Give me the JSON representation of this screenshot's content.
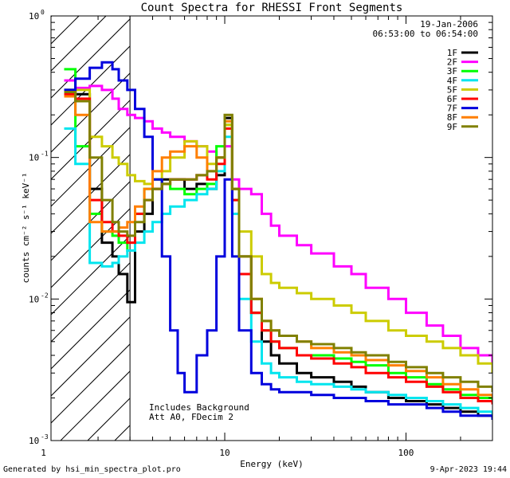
{
  "chart_data": {
    "type": "line",
    "title": "Count Spectra for RHESSI Front Segments",
    "xlabel": "Energy (keV)",
    "ylabel": "counts cm⁻² s⁻¹ keV⁻¹",
    "x_scale": "log",
    "y_scale": "log",
    "xlim": [
      1.1,
      300
    ],
    "ylim": [
      0.001,
      1.0
    ],
    "x_ticks": [
      {
        "value": 1,
        "label": "1"
      },
      {
        "value": 10,
        "label": "10"
      },
      {
        "value": 100,
        "label": "100"
      }
    ],
    "y_ticks": [
      {
        "value": 1,
        "label": "10",
        "exp": "0"
      },
      {
        "value": 0.1,
        "label": "10",
        "exp": "-1"
      },
      {
        "value": 0.01,
        "label": "10",
        "exp": "-2"
      },
      {
        "value": 0.001,
        "label": "10",
        "exp": "-3"
      }
    ],
    "date_text": "19-Jan-2006",
    "time_range_text": "06:53:00 to 06:54:00",
    "annotations": [
      "Includes Background",
      "Att A0, FDecim 2"
    ],
    "shaded_region_kev": [
      1.1,
      3.0
    ],
    "legend_position": "top-right",
    "series": [
      {
        "name": "1F",
        "color": "#000000",
        "x": [
          1.3,
          1.5,
          1.8,
          2.1,
          2.4,
          2.6,
          2.9,
          3.2,
          3.6,
          4.0,
          4.5,
          5.0,
          6.0,
          7.0,
          8.0,
          9.0,
          10.0,
          11.0,
          12.0,
          14.0,
          16.0,
          18.0,
          20.0,
          25.0,
          30.0,
          40.0,
          50.0,
          60.0,
          80.0,
          100.0,
          130.0,
          160.0,
          200.0,
          250.0,
          300.0
        ],
        "y": [
          0.3,
          0.28,
          0.06,
          0.025,
          0.02,
          0.015,
          0.0095,
          0.03,
          0.04,
          0.06,
          0.07,
          0.07,
          0.06,
          0.065,
          0.06,
          0.075,
          0.19,
          0.06,
          0.02,
          0.008,
          0.005,
          0.004,
          0.0035,
          0.003,
          0.0028,
          0.0026,
          0.0024,
          0.0022,
          0.002,
          0.0019,
          0.0018,
          0.0017,
          0.0016,
          0.0015,
          0.0014
        ]
      },
      {
        "name": "2F",
        "color": "#ff00ff",
        "x": [
          1.3,
          1.5,
          1.8,
          2.1,
          2.4,
          2.6,
          2.9,
          3.2,
          3.6,
          4.0,
          4.5,
          5.0,
          6.0,
          7.0,
          8.0,
          9.0,
          10.0,
          11.0,
          12.0,
          14.0,
          16.0,
          18.0,
          20.0,
          25.0,
          30.0,
          40.0,
          50.0,
          60.0,
          80.0,
          100.0,
          130.0,
          160.0,
          200.0,
          250.0,
          300.0
        ],
        "y": [
          0.35,
          0.31,
          0.32,
          0.3,
          0.26,
          0.22,
          0.2,
          0.19,
          0.18,
          0.16,
          0.15,
          0.14,
          0.13,
          0.12,
          0.11,
          0.1,
          0.12,
          0.07,
          0.06,
          0.055,
          0.04,
          0.033,
          0.028,
          0.024,
          0.021,
          0.017,
          0.015,
          0.012,
          0.01,
          0.008,
          0.0065,
          0.0055,
          0.0045,
          0.004,
          0.0035
        ]
      },
      {
        "name": "3F",
        "color": "#00ff00",
        "x": [
          1.3,
          1.5,
          1.8,
          2.1,
          2.4,
          2.6,
          2.9,
          3.2,
          3.6,
          4.0,
          4.5,
          5.0,
          6.0,
          7.0,
          8.0,
          9.0,
          10.0,
          11.0,
          12.0,
          14.0,
          16.0,
          18.0,
          20.0,
          25.0,
          30.0,
          40.0,
          50.0,
          60.0,
          80.0,
          100.0,
          130.0,
          160.0,
          200.0,
          250.0,
          300.0
        ],
        "y": [
          0.42,
          0.12,
          0.04,
          0.03,
          0.028,
          0.025,
          0.022,
          0.04,
          0.06,
          0.07,
          0.065,
          0.06,
          0.055,
          0.06,
          0.065,
          0.12,
          0.17,
          0.05,
          0.015,
          0.008,
          0.006,
          0.005,
          0.0045,
          0.004,
          0.004,
          0.0038,
          0.0036,
          0.0034,
          0.003,
          0.0028,
          0.0025,
          0.0023,
          0.0021,
          0.002,
          0.0019
        ]
      },
      {
        "name": "4F",
        "color": "#00e5ee",
        "x": [
          1.3,
          1.5,
          1.8,
          2.1,
          2.4,
          2.6,
          2.9,
          3.2,
          3.6,
          4.0,
          4.5,
          5.0,
          6.0,
          7.0,
          8.0,
          9.0,
          10.0,
          11.0,
          12.0,
          14.0,
          16.0,
          18.0,
          20.0,
          25.0,
          30.0,
          40.0,
          50.0,
          60.0,
          80.0,
          100.0,
          130.0,
          160.0,
          200.0,
          250.0,
          300.0
        ],
        "y": [
          0.16,
          0.09,
          0.018,
          0.017,
          0.018,
          0.02,
          0.022,
          0.025,
          0.03,
          0.035,
          0.04,
          0.045,
          0.05,
          0.055,
          0.06,
          0.08,
          0.14,
          0.04,
          0.01,
          0.005,
          0.0035,
          0.003,
          0.0028,
          0.0026,
          0.0025,
          0.0024,
          0.0023,
          0.0022,
          0.0021,
          0.002,
          0.0019,
          0.0018,
          0.0017,
          0.0016,
          0.0015
        ]
      },
      {
        "name": "5F",
        "color": "#cccc00",
        "x": [
          1.3,
          1.5,
          1.8,
          2.1,
          2.4,
          2.6,
          2.9,
          3.2,
          3.6,
          4.0,
          4.5,
          5.0,
          6.0,
          7.0,
          8.0,
          9.0,
          10.0,
          11.0,
          12.0,
          14.0,
          16.0,
          18.0,
          20.0,
          25.0,
          30.0,
          40.0,
          50.0,
          60.0,
          80.0,
          100.0,
          130.0,
          160.0,
          200.0,
          250.0,
          300.0
        ],
        "y": [
          0.3,
          0.3,
          0.14,
          0.12,
          0.1,
          0.09,
          0.075,
          0.068,
          0.065,
          0.07,
          0.08,
          0.1,
          0.13,
          0.12,
          0.09,
          0.1,
          0.17,
          0.06,
          0.03,
          0.02,
          0.015,
          0.013,
          0.012,
          0.011,
          0.01,
          0.009,
          0.008,
          0.007,
          0.006,
          0.0055,
          0.005,
          0.0045,
          0.004,
          0.0035,
          0.003
        ]
      },
      {
        "name": "6F",
        "color": "#ff0000",
        "x": [
          1.3,
          1.5,
          1.8,
          2.1,
          2.4,
          2.6,
          2.9,
          3.2,
          3.6,
          4.0,
          4.5,
          5.0,
          6.0,
          7.0,
          8.0,
          9.0,
          10.0,
          11.0,
          12.0,
          14.0,
          16.0,
          18.0,
          20.0,
          25.0,
          30.0,
          40.0,
          50.0,
          60.0,
          80.0,
          100.0,
          130.0,
          160.0,
          200.0,
          250.0,
          300.0
        ],
        "y": [
          0.28,
          0.26,
          0.05,
          0.035,
          0.03,
          0.028,
          0.025,
          0.04,
          0.05,
          0.06,
          0.065,
          0.07,
          0.07,
          0.075,
          0.07,
          0.09,
          0.16,
          0.05,
          0.015,
          0.008,
          0.006,
          0.005,
          0.0045,
          0.004,
          0.0038,
          0.0035,
          0.0033,
          0.003,
          0.0028,
          0.0026,
          0.0024,
          0.0022,
          0.002,
          0.0019,
          0.0018
        ]
      },
      {
        "name": "7F",
        "color": "#0000dd",
        "x": [
          1.3,
          1.5,
          1.8,
          2.1,
          2.4,
          2.6,
          2.9,
          3.2,
          3.6,
          4.0,
          4.5,
          5.0,
          5.5,
          6.0,
          7.0,
          8.0,
          9.0,
          10.0,
          11.0,
          12.0,
          14.0,
          16.0,
          18.0,
          20.0,
          25.0,
          30.0,
          40.0,
          50.0,
          60.0,
          80.0,
          100.0,
          130.0,
          160.0,
          200.0,
          250.0,
          300.0
        ],
        "y": [
          0.3,
          0.36,
          0.43,
          0.47,
          0.42,
          0.35,
          0.3,
          0.22,
          0.14,
          0.07,
          0.02,
          0.006,
          0.003,
          0.0022,
          0.004,
          0.006,
          0.02,
          0.07,
          0.02,
          0.006,
          0.003,
          0.0025,
          0.0023,
          0.0022,
          0.0022,
          0.0021,
          0.002,
          0.002,
          0.0019,
          0.0018,
          0.0018,
          0.0017,
          0.0016,
          0.0015,
          0.0015,
          0.0014
        ]
      },
      {
        "name": "8F",
        "color": "#ff7f00",
        "x": [
          1.3,
          1.5,
          1.8,
          2.1,
          2.4,
          2.6,
          2.9,
          3.2,
          3.6,
          4.0,
          4.5,
          5.0,
          6.0,
          7.0,
          8.0,
          9.0,
          10.0,
          11.0,
          12.0,
          14.0,
          16.0,
          18.0,
          20.0,
          25.0,
          30.0,
          40.0,
          50.0,
          60.0,
          80.0,
          100.0,
          130.0,
          160.0,
          200.0,
          250.0,
          300.0
        ],
        "y": [
          0.27,
          0.2,
          0.035,
          0.03,
          0.03,
          0.032,
          0.035,
          0.045,
          0.06,
          0.08,
          0.1,
          0.11,
          0.12,
          0.1,
          0.08,
          0.1,
          0.18,
          0.06,
          0.02,
          0.01,
          0.007,
          0.006,
          0.0055,
          0.005,
          0.0045,
          0.0042,
          0.004,
          0.0037,
          0.0034,
          0.0031,
          0.0028,
          0.0025,
          0.0023,
          0.0021,
          0.002
        ]
      },
      {
        "name": "9F",
        "color": "#808000",
        "x": [
          1.3,
          1.5,
          1.8,
          2.1,
          2.4,
          2.6,
          2.9,
          3.2,
          3.6,
          4.0,
          4.5,
          5.0,
          6.0,
          7.0,
          8.0,
          9.0,
          10.0,
          11.0,
          12.0,
          14.0,
          16.0,
          18.0,
          20.0,
          25.0,
          30.0,
          40.0,
          50.0,
          60.0,
          80.0,
          100.0,
          130.0,
          160.0,
          200.0,
          250.0,
          300.0
        ],
        "y": [
          0.29,
          0.25,
          0.1,
          0.05,
          0.035,
          0.03,
          0.028,
          0.035,
          0.05,
          0.06,
          0.065,
          0.07,
          0.07,
          0.075,
          0.08,
          0.1,
          0.2,
          0.06,
          0.02,
          0.01,
          0.007,
          0.006,
          0.0055,
          0.005,
          0.0048,
          0.0045,
          0.0042,
          0.004,
          0.0036,
          0.0033,
          0.003,
          0.0028,
          0.0026,
          0.0024,
          0.0022
        ]
      }
    ]
  },
  "footer": {
    "left": "Generated by hsi_min_spectra_plot.pro",
    "right": "9-Apr-2023 19:44"
  }
}
